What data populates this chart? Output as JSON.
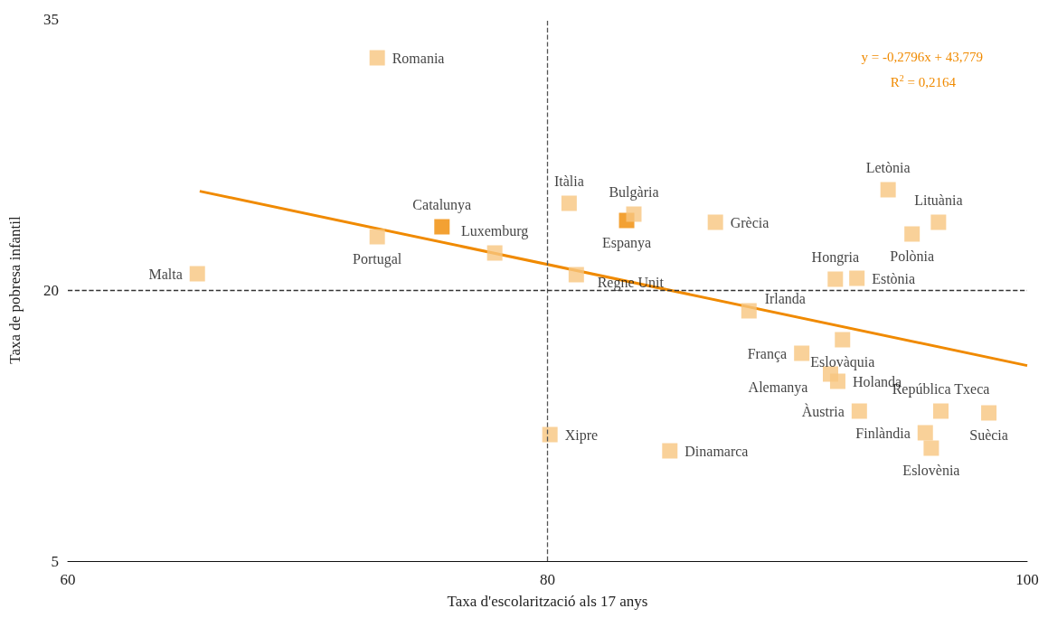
{
  "chart_data": {
    "type": "scatter",
    "xlabel": "Taxa d'escolarització als 17 anys",
    "ylabel": "Taxa de pobresa infantil",
    "xlim": [
      60,
      100
    ],
    "xticks": [
      60,
      80,
      100
    ],
    "ylim": [
      5,
      35
    ],
    "yticks": [
      5,
      20,
      35
    ],
    "grid": false,
    "marker": "square",
    "series": [
      {
        "type": "scatter",
        "x": [
          72.9,
          65.4,
          72.9,
          75.6,
          77.8,
          80.9,
          81.2,
          83.3,
          83.6,
          87.0,
          94.2,
          96.3,
          95.2,
          92.0,
          92.9,
          88.4,
          92.3,
          90.6,
          91.8,
          92.1,
          93.0,
          96.4,
          98.4,
          95.75,
          96.0,
          80.1,
          85.1
        ],
        "values": [
          32.85,
          20.9,
          22.95,
          23.5,
          22.05,
          24.8,
          20.85,
          23.85,
          24.2,
          23.75,
          25.55,
          23.75,
          23.1,
          20.6,
          20.65,
          18.85,
          17.25,
          16.5,
          15.35,
          14.95,
          13.3,
          13.3,
          13.2,
          12.1,
          11.25,
          12.0,
          11.1
        ],
        "colors": [
          "#f7c67f",
          "#f7c67f",
          "#f7c67f",
          "#f08a00",
          "#f7c67f",
          "#f7c67f",
          "#f7c67f",
          "#f08a00",
          "#f7c67f",
          "#f7c67f",
          "#f7c67f",
          "#f7c67f",
          "#f7c67f",
          "#f7c67f",
          "#f7c67f",
          "#f7c67f",
          "#f7c67f",
          "#f7c67f",
          "#f7c67f",
          "#f7c67f",
          "#f7c67f",
          "#f7c67f",
          "#f7c67f",
          "#f7c67f",
          "#f7c67f",
          "#f7c67f",
          "#f7c67f"
        ]
      },
      {
        "type": "line",
        "color": "#f08a00",
        "x": [
          65.5,
          100
        ],
        "values": [
          25.47,
          15.82
        ],
        "marker": "none",
        "line_style": "solid"
      }
    ],
    "ref_lines": [
      {
        "axis": "x",
        "value": 80,
        "color": "#555555",
        "line_style": "dashed"
      },
      {
        "axis": "y",
        "value": 20,
        "color": "#333333",
        "line_style": "dashed"
      }
    ],
    "annotations": [
      {
        "text": "Romania",
        "x": 72.9,
        "y": 32.85
      },
      {
        "text": "Malta",
        "x": 65.4,
        "y": 20.9
      },
      {
        "text": "Portugal",
        "x": 72.9,
        "y": 22.95
      },
      {
        "text": "Catalunya",
        "x": 75.6,
        "y": 23.5
      },
      {
        "text": "Luxemburg",
        "x": 77.8,
        "y": 22.05
      },
      {
        "text": "Itàlia",
        "x": 80.9,
        "y": 24.8
      },
      {
        "text": "Regne Unit",
        "x": 81.2,
        "y": 20.85
      },
      {
        "text": "Espanya",
        "x": 83.3,
        "y": 23.85
      },
      {
        "text": "Bulgària",
        "x": 83.6,
        "y": 24.2
      },
      {
        "text": "Grècia",
        "x": 87.0,
        "y": 23.75
      },
      {
        "text": "Letònia",
        "x": 94.2,
        "y": 25.55
      },
      {
        "text": "Lituània",
        "x": 96.3,
        "y": 23.75
      },
      {
        "text": "Polònia",
        "x": 95.2,
        "y": 23.1
      },
      {
        "text": "Hongria",
        "x": 92.0,
        "y": 20.6
      },
      {
        "text": "Estònia",
        "x": 92.9,
        "y": 20.65
      },
      {
        "text": "Irlanda",
        "x": 88.4,
        "y": 18.85
      },
      {
        "text": "Eslovàquia",
        "x": 92.3,
        "y": 17.25
      },
      {
        "text": "França",
        "x": 90.6,
        "y": 16.5
      },
      {
        "text": "Alemanya",
        "x": 91.8,
        "y": 15.35
      },
      {
        "text": "Holanda",
        "x": 92.1,
        "y": 14.95
      },
      {
        "text": "Àustria",
        "x": 93.0,
        "y": 13.3
      },
      {
        "text": "República Txeca",
        "x": 96.4,
        "y": 13.3
      },
      {
        "text": "Suècia",
        "x": 98.4,
        "y": 13.2
      },
      {
        "text": "Finlàndia",
        "x": 95.75,
        "y": 12.1
      },
      {
        "text": "Eslovènia",
        "x": 96.0,
        "y": 11.25
      },
      {
        "text": "Xipre",
        "x": 80.1,
        "y": 12.0
      },
      {
        "text": "Dinamarca",
        "x": 85.1,
        "y": 11.1
      },
      "y = -0,2796x + 43,779",
      "R$^{2}$ = 0,2164"
    ]
  }
}
